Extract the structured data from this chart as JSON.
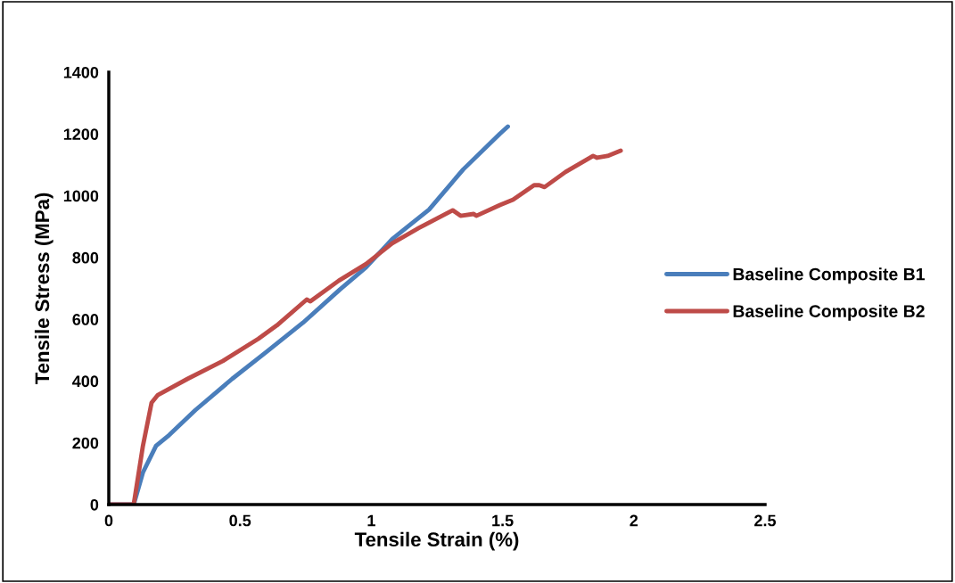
{
  "chart_data": {
    "type": "line",
    "xlabel": "Tensile Strain (%)",
    "ylabel": "Tensile Stress (MPa)",
    "xlim": [
      0,
      2.5
    ],
    "xticks": [
      0,
      0.5,
      1,
      1.5,
      2,
      2.5
    ],
    "ylim": [
      0,
      1400
    ],
    "yticks": [
      0,
      200,
      400,
      600,
      800,
      1000,
      1200,
      1400
    ],
    "grid": false,
    "legend": "right",
    "marker": "none",
    "line_style": "solid",
    "series": [
      {
        "name": "Baseline Composite B1",
        "color": "#4a7ebb",
        "x": [
          0,
          0.095,
          0.13,
          0.18,
          0.23,
          0.33,
          0.47,
          0.6,
          0.74,
          0.88,
          0.98,
          1.08,
          1.22,
          1.35,
          1.49,
          1.52
        ],
        "values": [
          0,
          0,
          104,
          190,
          225,
          306,
          407,
          494,
          589,
          696,
          768,
          860,
          955,
          1085,
          1201,
          1224
        ]
      },
      {
        "name": "Baseline Composite B2",
        "color": "#be4b48",
        "x": [
          0,
          0.095,
          0.13,
          0.163,
          0.187,
          0.3,
          0.435,
          0.57,
          0.64,
          0.754,
          0.768,
          0.876,
          0.98,
          1.08,
          1.18,
          1.31,
          1.34,
          1.39,
          1.4,
          1.49,
          1.54,
          1.62,
          1.64,
          1.66,
          1.74,
          1.845,
          1.86,
          1.9,
          1.95
        ],
        "values": [
          0,
          0,
          190,
          330,
          355,
          407,
          465,
          537,
          580,
          664,
          658,
          725,
          779,
          846,
          895,
          953,
          935,
          941,
          935,
          970,
          987,
          1034,
          1034,
          1028,
          1077,
          1129,
          1123,
          1129,
          1146
        ]
      }
    ]
  }
}
